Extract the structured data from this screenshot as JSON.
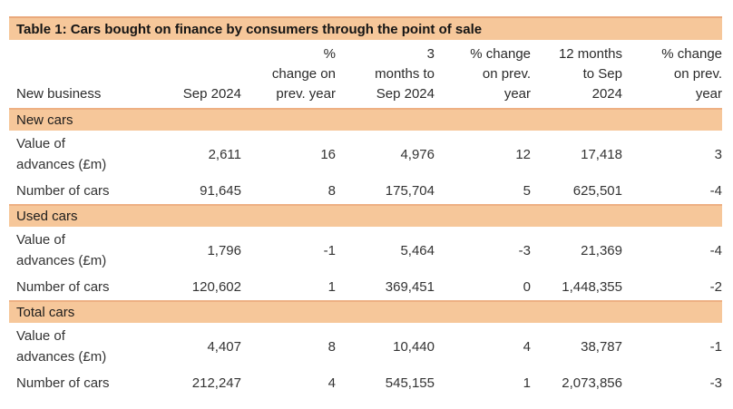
{
  "accent_color": "#f6c79a",
  "accent_edge_color": "#eeb083",
  "title": "Table 1: Cars bought on finance by consumers through the point of sale",
  "table": {
    "col1_header": "New business",
    "column_headers": [
      "Sep 2024",
      "%\nchange on\nprev. year",
      "3\nmonths to\nSep 2024",
      "% change\non prev.\nyear",
      "12 months\nto Sep\n2024",
      "% change\non prev.\nyear"
    ],
    "sections": [
      {
        "name": "New cars",
        "rows": [
          {
            "label": "Value of advances (£m)",
            "values": [
              "2,611",
              "16",
              "4,976",
              "12",
              "17,418",
              "3"
            ]
          },
          {
            "label": "Number of cars",
            "values": [
              "91,645",
              "8",
              "175,704",
              "5",
              "625,501",
              "-4"
            ]
          }
        ]
      },
      {
        "name": "Used cars",
        "rows": [
          {
            "label": "Value of advances (£m)",
            "values": [
              "1,796",
              "-1",
              "5,464",
              "-3",
              "21,369",
              "-4"
            ]
          },
          {
            "label": "Number of cars",
            "values": [
              "120,602",
              "1",
              "369,451",
              "0",
              "1,448,355",
              "-2"
            ]
          }
        ]
      },
      {
        "name": "Total cars",
        "rows": [
          {
            "label": "Value of advances (£m)",
            "values": [
              "4,407",
              "8",
              "10,440",
              "4",
              "38,787",
              "-1"
            ]
          },
          {
            "label": "Number of cars",
            "values": [
              "212,247",
              "4",
              "545,155",
              "1",
              "2,073,856",
              "-3"
            ]
          }
        ]
      }
    ]
  },
  "chart_data": {
    "type": "table",
    "title": "Table 1: Cars bought on finance by consumers through the point of sale",
    "columns": [
      "New business",
      "Sep 2024",
      "% change on prev. year",
      "3 months to Sep 2024",
      "% change on prev. year",
      "12 months to Sep 2024",
      "% change on prev. year"
    ],
    "rows": [
      {
        "section": "New cars",
        "label": "Value of advances (£m)",
        "sep_2024": 2611,
        "pct_change_month": 16,
        "three_months_to_sep_2024": 4976,
        "pct_change_3m": 12,
        "twelve_months_to_sep_2024": 17418,
        "pct_change_12m": 3
      },
      {
        "section": "New cars",
        "label": "Number of cars",
        "sep_2024": 91645,
        "pct_change_month": 8,
        "three_months_to_sep_2024": 175704,
        "pct_change_3m": 5,
        "twelve_months_to_sep_2024": 625501,
        "pct_change_12m": -4
      },
      {
        "section": "Used cars",
        "label": "Value of advances (£m)",
        "sep_2024": 1796,
        "pct_change_month": -1,
        "three_months_to_sep_2024": 5464,
        "pct_change_3m": -3,
        "twelve_months_to_sep_2024": 21369,
        "pct_change_12m": -4
      },
      {
        "section": "Used cars",
        "label": "Number of cars",
        "sep_2024": 120602,
        "pct_change_month": 1,
        "three_months_to_sep_2024": 369451,
        "pct_change_3m": 0,
        "twelve_months_to_sep_2024": 1448355,
        "pct_change_12m": -2
      },
      {
        "section": "Total cars",
        "label": "Value of advances (£m)",
        "sep_2024": 4407,
        "pct_change_month": 8,
        "three_months_to_sep_2024": 10440,
        "pct_change_3m": 4,
        "twelve_months_to_sep_2024": 38787,
        "pct_change_12m": -1
      },
      {
        "section": "Total cars",
        "label": "Number of cars",
        "sep_2024": 212247,
        "pct_change_month": 4,
        "three_months_to_sep_2024": 545155,
        "pct_change_3m": 1,
        "twelve_months_to_sep_2024": 2073856,
        "pct_change_12m": -3
      }
    ]
  }
}
